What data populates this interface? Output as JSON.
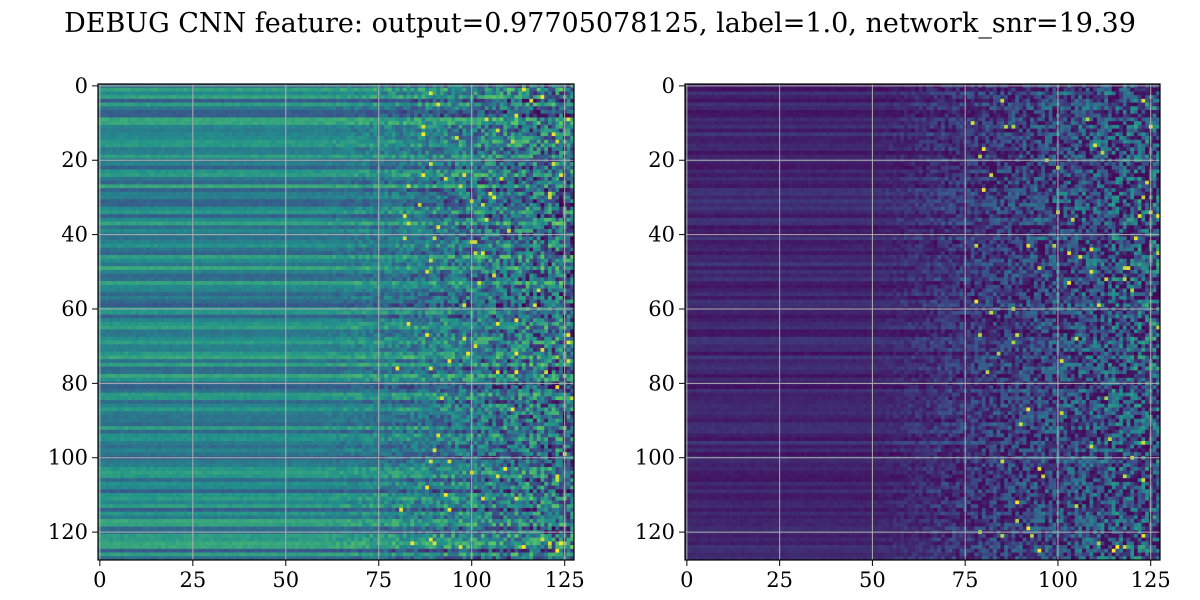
{
  "title": "DEBUG CNN feature: output=0.97705078125, label=1.0, network_snr=19.39",
  "chart_data": [
    {
      "type": "heatmap",
      "colormap": "viridis",
      "rows": 128,
      "cols": 128,
      "xlim": [
        -0.5,
        127.5
      ],
      "ylim": [
        127.5,
        -0.5
      ],
      "x_ticks": [
        0,
        25,
        50,
        75,
        100,
        125
      ],
      "y_ticks": [
        0,
        20,
        40,
        60,
        80,
        100,
        120
      ],
      "grid": true,
      "description_values": {
        "left_half_mean": 0.45,
        "right_half_mean": 0.35,
        "right_half_noise": 0.18
      }
    },
    {
      "type": "heatmap",
      "colormap": "viridis",
      "rows": 128,
      "cols": 128,
      "xlim": [
        -0.5,
        127.5
      ],
      "ylim": [
        127.5,
        -0.5
      ],
      "x_ticks": [
        0,
        25,
        50,
        75,
        100,
        125
      ],
      "y_ticks": [
        0,
        20,
        40,
        60,
        80,
        100,
        120
      ],
      "grid": true,
      "description_values": {
        "left_half_mean": 0.1,
        "right_half_mean": 0.2,
        "right_half_noise": 0.22
      }
    }
  ]
}
